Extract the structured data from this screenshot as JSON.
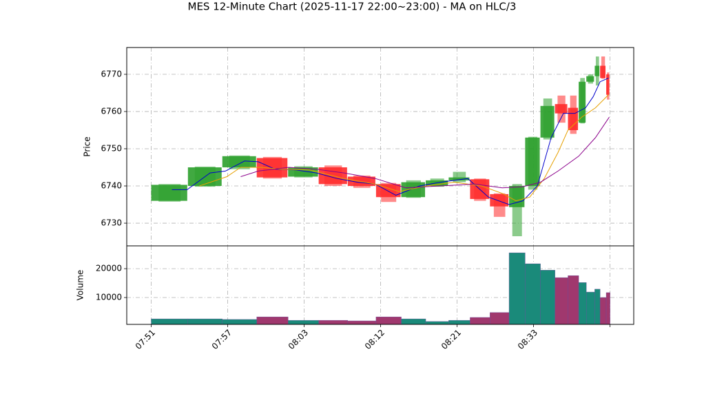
{
  "chart_data": [
    {
      "type": "candlestick",
      "title": "MES 12-Minute Chart (2025-11-17 22:00~23:00) - MA on HLC/3",
      "ylabel": "Price",
      "xlim": [
        -3.2,
        63.1
      ],
      "xticks": [
        {
          "value": 0,
          "label": "07:51"
        },
        {
          "value": 10,
          "label": "07:57"
        },
        {
          "value": 20,
          "label": "08:03"
        },
        {
          "value": 30,
          "label": "08:12"
        },
        {
          "value": 40,
          "label": "08:21"
        },
        {
          "value": 50,
          "label": "08:33"
        },
        {
          "value": 60,
          "label": null
        }
      ],
      "ylim": [
        6723.9,
        6777.2
      ],
      "yticks": [
        6730,
        6740,
        6750,
        6760,
        6770
      ],
      "grid": true,
      "up_color": "#2ca02c",
      "down_color": "#ff2a2a",
      "edges": [
        0,
        4.8,
        9.3,
        13.8,
        17.9,
        21.9,
        25.7,
        29.4,
        32.7,
        35.9,
        38.9,
        41.7,
        44.3,
        46.8,
        48.9,
        50.9,
        52.8,
        54.5,
        55.9,
        56.9,
        58.0,
        58.7,
        59.5,
        60
      ],
      "open": [
        6736,
        6740,
        6745,
        6747.5,
        6742.5,
        6745,
        6742.5,
        6740.5,
        6737,
        6740,
        6741.5,
        6741.8,
        6737.8,
        6734.3,
        6740,
        6753,
        6762,
        6761,
        6757,
        6768,
        6769.5,
        6772.3,
        6770
      ],
      "high": [
        6740.5,
        6745.2,
        6748.2,
        6747.8,
        6745.3,
        6745.5,
        6742.8,
        6740.8,
        6741.5,
        6742,
        6743.8,
        6742,
        6738,
        6740.5,
        6753.2,
        6763.5,
        6764.3,
        6764.3,
        6769,
        6770,
        6774.8,
        6774.8,
        6770.5
      ],
      "low": [
        6735.8,
        6739.8,
        6744.5,
        6742,
        6742.3,
        6740,
        6739.5,
        6735.7,
        6736.8,
        6739.8,
        6741,
        6736,
        6731.7,
        6726.5,
        6739,
        6752.5,
        6757,
        6754,
        6756.8,
        6767.5,
        6767,
        6768.8,
        6763.2
      ],
      "close": [
        6740.3,
        6745,
        6748,
        6742.3,
        6745,
        6740.5,
        6740,
        6737,
        6741,
        6741.5,
        6742.3,
        6736.5,
        6734.5,
        6740,
        6753,
        6761.5,
        6759.5,
        6755,
        6768,
        6769.5,
        6772.3,
        6769,
        6764.5
      ],
      "series": [
        {
          "color": "#0000cc",
          "x": [
            2.7,
            4.7,
            7.7,
            9.7,
            12.2,
            14.0,
            16.2,
            18.9,
            21.6,
            24.3,
            27.0,
            29.3,
            32.0,
            35.1,
            37.8,
            41.4,
            44.1,
            46.8,
            48.6,
            50.5,
            52.3,
            53.9,
            55.4,
            56.8,
            57.8,
            58.7,
            59.8
          ],
          "values": [
            6739,
            6739,
            6743.5,
            6744,
            6746.7,
            6746.5,
            6744.5,
            6744.3,
            6743.5,
            6742,
            6741,
            6740.5,
            6737.5,
            6740,
            6741,
            6742,
            6737,
            6735,
            6736,
            6740,
            6753,
            6759.5,
            6759.5,
            6761,
            6764,
            6768,
            6769
          ]
        },
        {
          "color": "#e6a000",
          "x": [
            6.3,
            9.9,
            11.7,
            14.4,
            17.1,
            20.7,
            25.2,
            29.3,
            32.4,
            36.0,
            39.6,
            43.2,
            45.9,
            47.7,
            49.5,
            51.4,
            53.2,
            54.5,
            56.3,
            58.1,
            59.8
          ],
          "values": [
            6740,
            6742.5,
            6745,
            6745,
            6744.5,
            6744.3,
            6742,
            6740.5,
            6738.5,
            6740,
            6741,
            6740,
            6738,
            6736,
            6737,
            6742,
            6749,
            6755,
            6758.5,
            6761,
            6764.5
          ]
        },
        {
          "color": "#8b008b",
          "x": [
            11.7,
            14.0,
            18.0,
            21.6,
            25.2,
            29.3,
            33.3,
            37.8,
            42.3,
            45.9,
            48.6,
            50.9,
            53.2,
            55.9,
            58.1,
            59.9
          ],
          "values": [
            6742.5,
            6744,
            6745,
            6744.5,
            6743.5,
            6742,
            6739.5,
            6740,
            6740.5,
            6739.5,
            6739.8,
            6741,
            6744,
            6748,
            6753,
            6758.5
          ]
        }
      ]
    },
    {
      "type": "bar",
      "ylabel": "Volume",
      "ylim": [
        700,
        27900
      ],
      "yticks": [
        10000,
        20000
      ],
      "grid": true,
      "values": [
        2600,
        2600,
        2400,
        3300,
        2100,
        2100,
        1900,
        3300,
        2600,
        1700,
        2100,
        3100,
        4800,
        25500,
        21700,
        19500,
        16900,
        17600,
        15200,
        11900,
        12900,
        10000,
        11700
      ],
      "colors": [
        "#1a8a7a",
        "#1a8a7a",
        "#1a8a7a",
        "#a0386e",
        "#1a8a7a",
        "#a0386e",
        "#a0386e",
        "#a0386e",
        "#1a8a7a",
        "#1a8a7a",
        "#1a8a7a",
        "#a0386e",
        "#a0386e",
        "#1a8a7a",
        "#1a8a7a",
        "#1a8a7a",
        "#a0386e",
        "#a0386e",
        "#1a8a7a",
        "#1a8a7a",
        "#1a8a7a",
        "#a0386e",
        "#a0386e"
      ]
    }
  ]
}
